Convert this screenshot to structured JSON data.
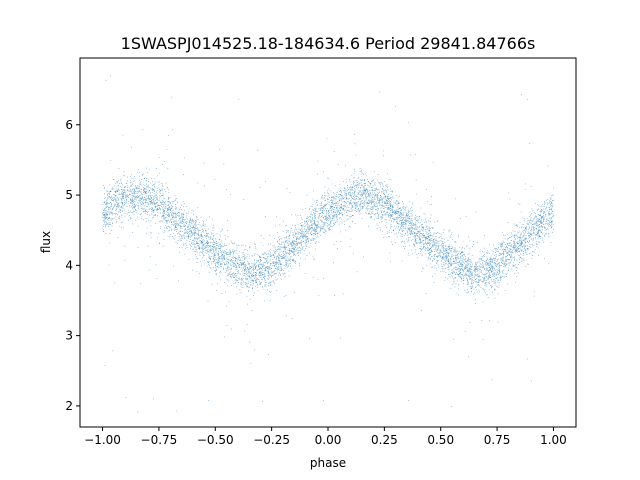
{
  "chart_data": {
    "type": "scatter",
    "title": "1SWASPJ014525.18-184634.6 Period 29841.84766s",
    "xlabel": "phase",
    "ylabel": "flux",
    "xlim": [
      -1.1,
      1.1
    ],
    "ylim": [
      1.7,
      6.95
    ],
    "x_ticks": [
      -1.0,
      -0.75,
      -0.5,
      -0.25,
      0.0,
      0.25,
      0.5,
      0.75,
      1.0
    ],
    "x_tick_labels": [
      "−1.00",
      "−0.75",
      "−0.50",
      "−0.25",
      "0.00",
      "0.25",
      "0.50",
      "0.75",
      "1.00"
    ],
    "y_ticks": [
      2,
      3,
      4,
      5,
      6
    ],
    "y_tick_labels": [
      "2",
      "3",
      "4",
      "5",
      "6"
    ],
    "grid": false,
    "marker_color": "#1f77b4",
    "series": [
      {
        "name": "",
        "trend_x": [
          -1.0,
          -0.9,
          -0.85,
          -0.75,
          -0.6,
          -0.5,
          -0.4,
          -0.35,
          -0.25,
          -0.1,
          0.0,
          0.1,
          0.15,
          0.25,
          0.4,
          0.5,
          0.6,
          0.65,
          0.75,
          0.9,
          1.0
        ],
        "trend_y": [
          4.75,
          4.97,
          5.0,
          4.88,
          4.45,
          4.18,
          3.95,
          3.88,
          3.98,
          4.45,
          4.75,
          4.97,
          5.0,
          4.88,
          4.45,
          4.18,
          3.95,
          3.88,
          3.98,
          4.45,
          4.75
        ],
        "scatter_spread": 0.15,
        "outlier_range": [
          1.9,
          6.7
        ]
      }
    ]
  }
}
